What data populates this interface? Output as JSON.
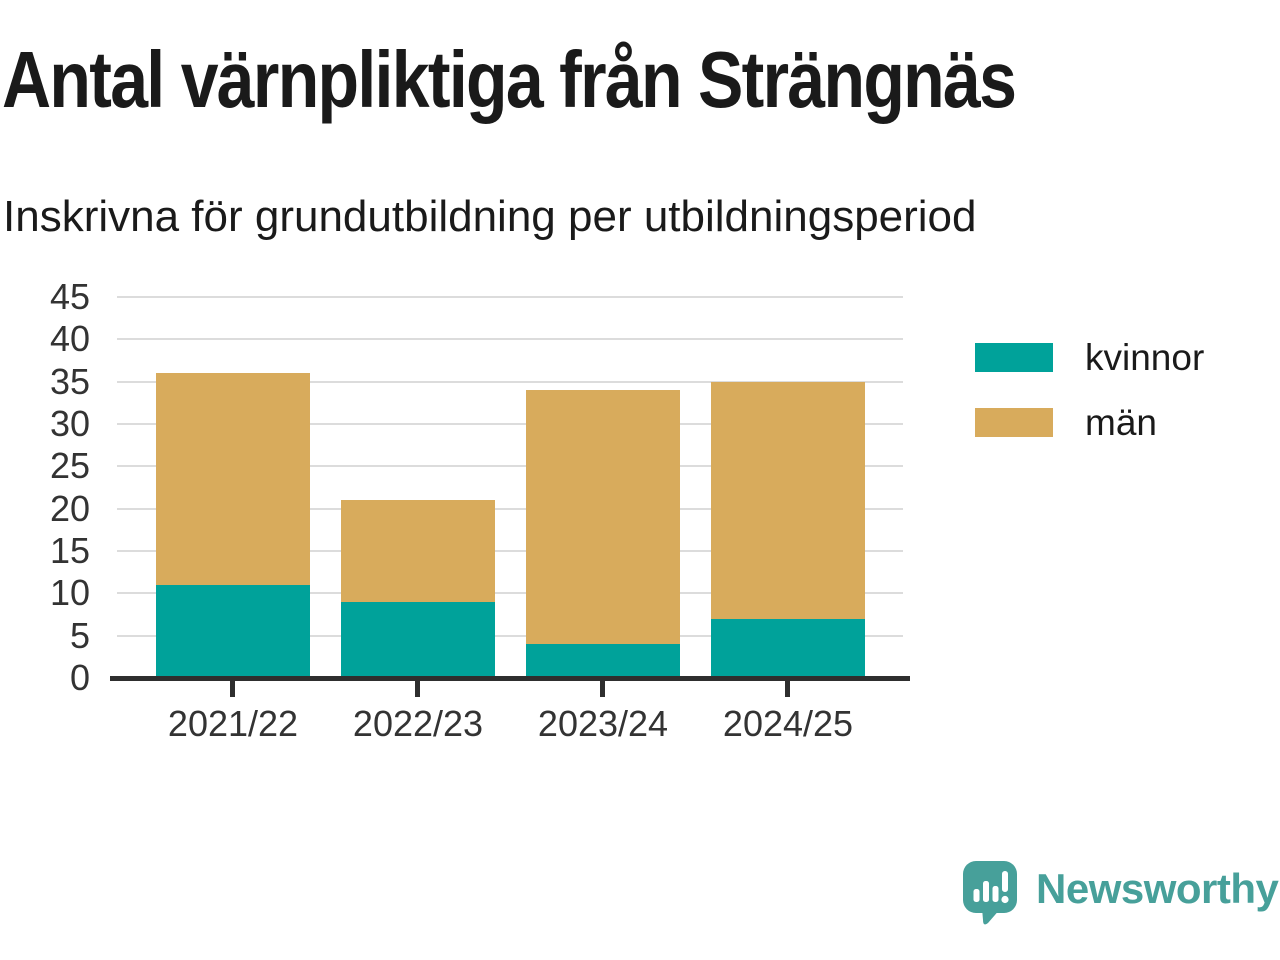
{
  "chart_data": {
    "type": "bar",
    "stacked": true,
    "title": "Antal värnpliktiga från Strängnäs",
    "subtitle": "Inskrivna för grundutbildning per utbildningsperiod",
    "categories": [
      "2021/22",
      "2022/23",
      "2023/24",
      "2024/25"
    ],
    "series": [
      {
        "name": "kvinnor",
        "color": "#00a29a",
        "values": [
          11,
          9,
          4,
          7
        ]
      },
      {
        "name": "män",
        "color": "#d8ab5c",
        "values": [
          25,
          12,
          30,
          28
        ]
      }
    ],
    "ylim": [
      0,
      45
    ],
    "ytick_step": 5,
    "yticks": [
      0,
      5,
      10,
      15,
      20,
      25,
      30,
      35,
      40,
      45
    ],
    "grid": "horizontal",
    "legend_position": "right"
  },
  "branding": {
    "name": "Newsworthy",
    "color": "#47a09a",
    "icon": "speech-bubble-bar-chart-exclamation"
  },
  "styles": {
    "background": "#ffffff",
    "title_color": "#1a1a1a",
    "axis_label_color": "#333333",
    "grid_color": "#dcdcdc",
    "axis_color": "#2e2e2e"
  }
}
